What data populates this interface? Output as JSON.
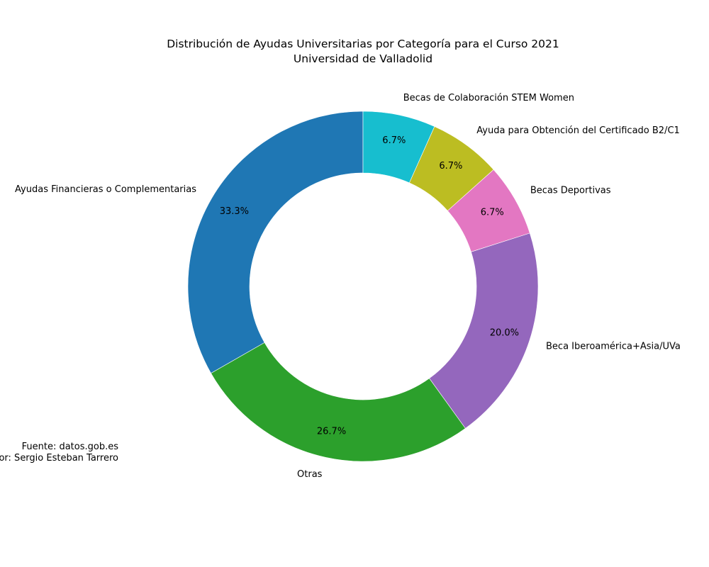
{
  "chart_data": {
    "type": "pie",
    "style": "donut",
    "title": "Distribución de Ayudas Universitarias por Categoría para el Curso 2021",
    "subtitle": "Universidad de Valladolid",
    "start_angle_deg": 90,
    "direction": "counterclockwise",
    "slices": [
      {
        "label": "Ayudas Financieras o Complementarias",
        "value": 33.3,
        "pct_label": "33.3%",
        "color": "#1f77b4"
      },
      {
        "label": "Otras",
        "value": 26.7,
        "pct_label": "26.7%",
        "color": "#2ca02c"
      },
      {
        "label": "Beca Iberoamérica+Asia/UVa",
        "value": 20.0,
        "pct_label": "20.0%",
        "color": "#9467bd"
      },
      {
        "label": "Becas Deportivas",
        "value": 6.7,
        "pct_label": "6.7%",
        "color": "#e377c2"
      },
      {
        "label": "Ayuda para Obtención del Certificado B2/C1",
        "value": 6.7,
        "pct_label": "6.7%",
        "color": "#bcbd22"
      },
      {
        "label": "Becas de Colaboración STEM Women",
        "value": 6.7,
        "pct_label": "6.7%",
        "color": "#17becf"
      }
    ],
    "source_lines": [
      "Fuente: datos.gob.es",
      "Autor: Sergio Esteban Tarrero"
    ]
  }
}
